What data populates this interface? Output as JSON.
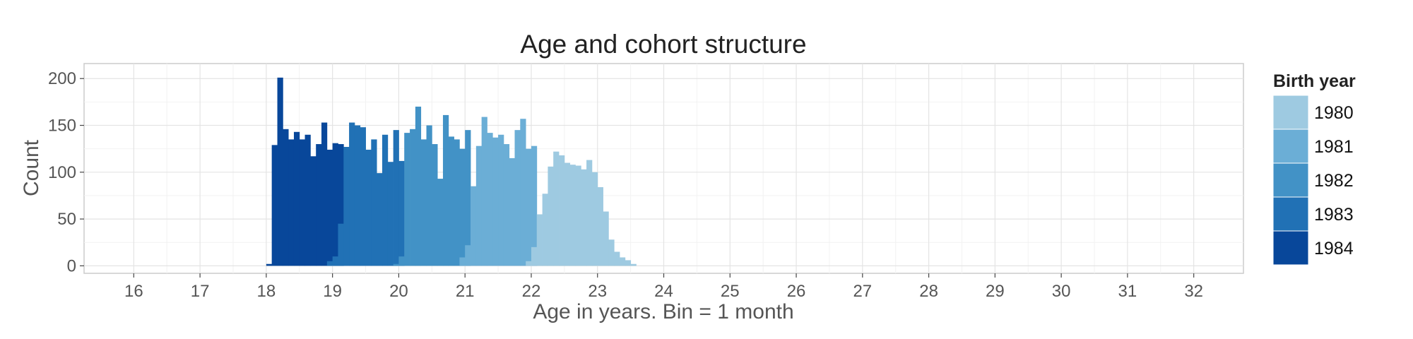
{
  "chart_data": {
    "type": "bar",
    "title": "Age and cohort structure",
    "xlabel": "Age in years. Bin = 1 month",
    "ylabel": "Count",
    "xlim": [
      15.25,
      32.75
    ],
    "ylim": [
      -8,
      216
    ],
    "x_ticks": [
      16,
      17,
      18,
      19,
      20,
      21,
      22,
      23,
      24,
      25,
      26,
      27,
      28,
      29,
      30,
      31,
      32
    ],
    "y_ticks": [
      0,
      50,
      100,
      150,
      200
    ],
    "grid": true,
    "legend_position": "right",
    "legend_title": "Birth year",
    "bin_width_years": 0.08333,
    "series": [
      {
        "name": "1984",
        "color": "#08479a",
        "x": [
          18.0,
          18.083,
          18.167,
          18.25,
          18.333,
          18.417,
          18.5,
          18.583,
          18.667,
          18.75,
          18.833,
          18.917,
          19.0,
          19.083
        ],
        "values": [
          2,
          129,
          201,
          146,
          135,
          143,
          135,
          140,
          117,
          130,
          153,
          124,
          131,
          130
        ]
      },
      {
        "name": "1983",
        "color": "#2171b5",
        "x": [
          18.917,
          19.0,
          19.083,
          19.167,
          19.25,
          19.333,
          19.417,
          19.5,
          19.583,
          19.667,
          19.75,
          19.833,
          19.917,
          20.0
        ],
        "values": [
          5,
          10,
          45,
          127,
          153,
          150,
          148,
          124,
          135,
          99,
          140,
          111,
          145,
          112
        ]
      },
      {
        "name": "1982",
        "color": "#4292c6",
        "x": [
          19.917,
          20.0,
          20.083,
          20.167,
          20.25,
          20.333,
          20.417,
          20.5,
          20.583,
          20.667,
          20.75,
          20.833,
          20.917,
          21.0
        ],
        "values": [
          2,
          10,
          142,
          146,
          170,
          135,
          150,
          130,
          93,
          161,
          138,
          135,
          125,
          145
        ]
      },
      {
        "name": "1981",
        "color": "#6baed6",
        "x": [
          20.917,
          21.0,
          21.083,
          21.167,
          21.25,
          21.333,
          21.417,
          21.5,
          21.583,
          21.667,
          21.75,
          21.833,
          21.917,
          22.0
        ],
        "values": [
          9,
          22,
          85,
          128,
          159,
          142,
          137,
          140,
          130,
          115,
          145,
          157,
          125,
          128
        ]
      },
      {
        "name": "1980",
        "color": "#9ecae1",
        "x": [
          21.917,
          22.0,
          22.083,
          22.167,
          22.25,
          22.333,
          22.417,
          22.5,
          22.583,
          22.667,
          22.75,
          22.833,
          22.917,
          23.0,
          23.083,
          23.167,
          23.25,
          23.333,
          23.417,
          23.5
        ],
        "values": [
          5,
          20,
          55,
          77,
          106,
          122,
          118,
          110,
          108,
          107,
          103,
          113,
          100,
          84,
          58,
          28,
          15,
          9,
          6,
          2
        ]
      }
    ]
  }
}
